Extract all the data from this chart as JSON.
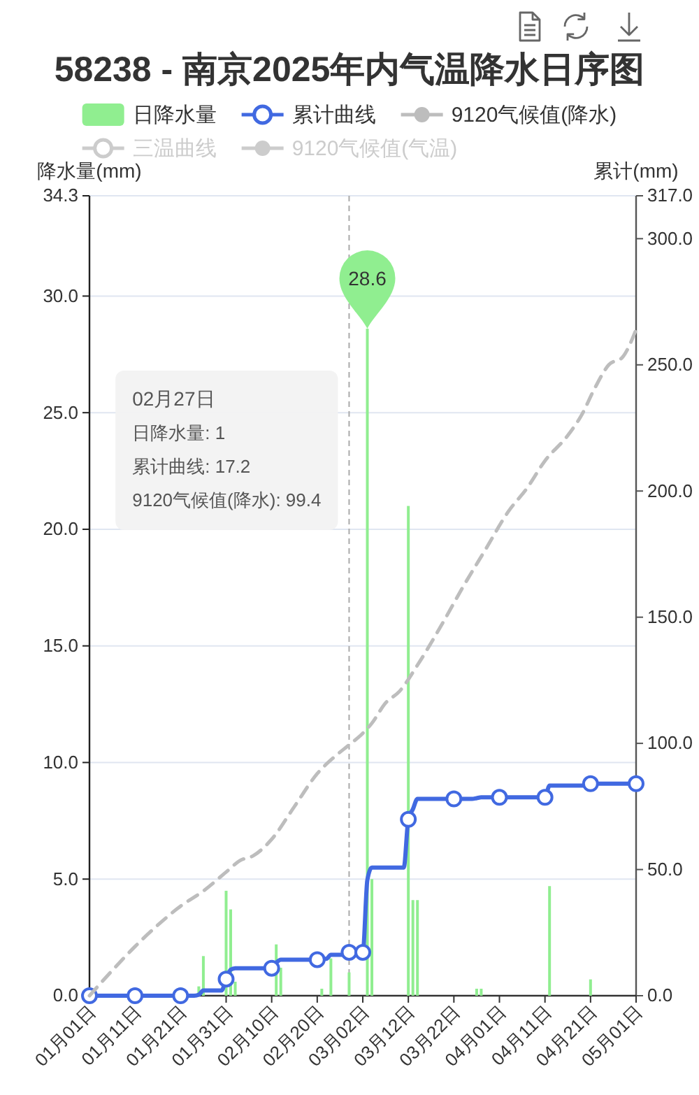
{
  "chart_data": {
    "type": "bar",
    "title": "58238 - 南京2025年内气温降水日序图",
    "ylabel": "降水量(mm)",
    "y2label": "累计(mm)",
    "xlim": [
      "--01-01",
      "--05-01"
    ],
    "xticks": [
      {
        "value": "--01-01",
        "label": "01月01日"
      },
      {
        "value": "--01-11",
        "label": "01月11日"
      },
      {
        "value": "--01-21",
        "label": "01月21日"
      },
      {
        "value": "--01-31",
        "label": "01月31日"
      },
      {
        "value": "--02-10",
        "label": "02月10日"
      },
      {
        "value": "--02-20",
        "label": "02月20日"
      },
      {
        "value": "--03-02",
        "label": "03月02日"
      },
      {
        "value": "--03-12",
        "label": "03月12日"
      },
      {
        "value": "--03-22",
        "label": "03月22日"
      },
      {
        "value": "--04-01",
        "label": "04月01日"
      },
      {
        "value": "--04-11",
        "label": "04月11日"
      },
      {
        "value": "--04-21",
        "label": "04月21日"
      },
      {
        "value": "--05-01",
        "label": "05月01日"
      }
    ],
    "ylim": [
      0,
      34.3
    ],
    "yticks": [
      {
        "value": 0,
        "label": "0.0"
      },
      {
        "value": 5,
        "label": "5.0"
      },
      {
        "value": 10,
        "label": "10.0"
      },
      {
        "value": 15,
        "label": "15.0"
      },
      {
        "value": 20,
        "label": "20.0"
      },
      {
        "value": 25,
        "label": "25.0"
      },
      {
        "value": 30,
        "label": "30.0"
      },
      34.3
    ],
    "y2lim": [
      0,
      317
    ],
    "y2ticks": [
      {
        "value": 0,
        "label": "0.0"
      },
      {
        "value": 50,
        "label": "50.0"
      },
      {
        "value": 100,
        "label": "100.0"
      },
      {
        "value": 150,
        "label": "150.0"
      },
      {
        "value": 200,
        "label": "200.0"
      },
      {
        "value": 250,
        "label": "250.0"
      },
      {
        "value": 300,
        "label": "300.0"
      },
      {
        "value": 317,
        "label": "317.0"
      }
    ],
    "grid": "y",
    "legend": "top",
    "ref_lines": [
      {
        "axis": "x",
        "value": "--02-27",
        "color": "#aaaaaa",
        "line_style": "dashed"
      }
    ],
    "annotations": [
      "02月27日",
      "日降水量: 1",
      "累计曲线: 17.2",
      "9120气候值(降水): 99.4"
    ],
    "series": [
      {
        "name": "日降水量",
        "color": "#90ee90",
        "x": [
          "--01-25",
          "--01-26",
          "--01-31",
          "--02-01",
          "--02-02",
          "--02-11",
          "--02-12",
          "--02-21",
          "--02-23",
          "--02-27",
          "--03-03",
          "--03-04",
          "--03-12",
          "--03-13",
          "--03-14",
          "--03-27",
          "--03-28",
          "--04-12",
          "--04-21"
        ],
        "values": [
          0.4,
          1.7,
          4.5,
          3.7,
          0.6,
          2.2,
          1.2,
          0.3,
          1.6,
          1.0,
          28.6,
          5.0,
          21.0,
          4.1,
          4.1,
          0.3,
          0.3,
          4.7,
          0.7
        ],
        "value_labels": [
          null,
          null,
          null,
          null,
          null,
          null,
          null,
          null,
          null,
          null,
          "28.6",
          null,
          null,
          null,
          null,
          null,
          null,
          null,
          null
        ]
      },
      {
        "name": "累计曲线",
        "type": "line",
        "axis": "y2",
        "color": "#4169e1",
        "x": [
          "--01-01",
          "--01-11",
          "--01-21",
          "--01-24",
          "--01-25",
          "--01-26",
          "--01-30",
          "--01-31",
          "--02-01",
          "--02-02",
          "--02-10",
          "--02-11",
          "--02-12",
          "--02-20",
          "--02-21",
          "--02-22",
          "--02-23",
          "--02-26",
          "--02-27",
          "--03-02",
          "--03-03",
          "--03-04",
          "--03-11",
          "--03-12",
          "--03-13",
          "--03-14",
          "--03-22",
          "--03-26",
          "--03-27",
          "--03-28",
          "--04-01",
          "--04-11",
          "--04-12",
          "--04-20",
          "--04-21",
          "--05-01"
        ],
        "values": [
          0,
          0,
          0,
          0,
          0.4,
          2.1,
          2.1,
          6.6,
          10.3,
          10.9,
          10.9,
          13.1,
          14.3,
          14.3,
          14.6,
          14.6,
          16.2,
          16.2,
          17.2,
          17.2,
          45.8,
          50.8,
          50.8,
          69.9,
          73.9,
          78.0,
          78.0,
          78.0,
          78.3,
          78.6,
          78.6,
          78.6,
          83.3,
          83.3,
          84.0,
          84.0
        ]
      },
      {
        "type": "scatter",
        "axis": "y2",
        "color": "#4169e1",
        "marker": "circle",
        "x": [
          "--01-01",
          "--01-11",
          "--01-21",
          "--01-31",
          "--02-10",
          "--02-20",
          "--02-27",
          "--03-02",
          "--03-12",
          "--03-22",
          "--04-01",
          "--04-11",
          "--04-21",
          "--05-01"
        ],
        "values": [
          0,
          0,
          0,
          6.6,
          10.9,
          14.3,
          17.2,
          17.2,
          69.9,
          78.0,
          78.6,
          78.6,
          84.0,
          84.0
        ]
      },
      {
        "name": "9120气候值(降水)",
        "type": "line",
        "axis": "y2",
        "color": "#bdbdbd",
        "marker": "none",
        "line_style": "dashed",
        "x": [
          "--01-01",
          "--01-06",
          "--01-11",
          "--01-16",
          "--01-21",
          "--01-26",
          "--01-31",
          "--02-03",
          "--02-06",
          "--02-10",
          "--02-15",
          "--02-20",
          "--02-24",
          "--02-27",
          "--03-02",
          "--03-04",
          "--03-07",
          "--03-10",
          "--03-14",
          "--03-19",
          "--03-24",
          "--03-29",
          "--04-03",
          "--04-07",
          "--04-11",
          "--04-16",
          "--04-19",
          "--04-22",
          "--04-25",
          "--04-28",
          "--05-01"
        ],
        "values": [
          0,
          10,
          19.5,
          28,
          35.5,
          41.5,
          49,
          53.5,
          55.5,
          62,
          75,
          88,
          95,
          99.4,
          104,
          108,
          116,
          120.5,
          131,
          146,
          162,
          177,
          192,
          201,
          212,
          222,
          230,
          241,
          250,
          253,
          264
        ]
      },
      {
        "name": "三温曲线",
        "type": "line",
        "color": "#cccccc"
      },
      {
        "name": "9120气候值(气温)",
        "type": "line",
        "color": "#cccccc",
        "marker": "none"
      }
    ]
  }
}
